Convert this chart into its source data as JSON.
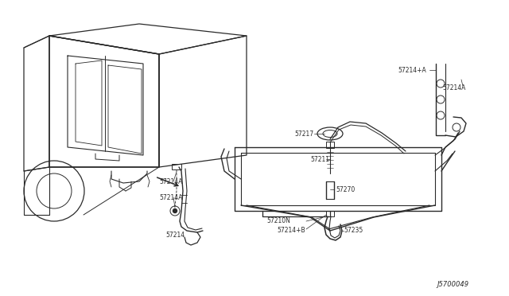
{
  "bg_color": "#ffffff",
  "line_color": "#2a2a2a",
  "text_color": "#2a2a2a",
  "fig_width": 6.4,
  "fig_height": 3.72,
  "dpi": 100,
  "diagram_code": "J5700049",
  "xlim": [
    0,
    640
  ],
  "ylim": [
    0,
    372
  ]
}
